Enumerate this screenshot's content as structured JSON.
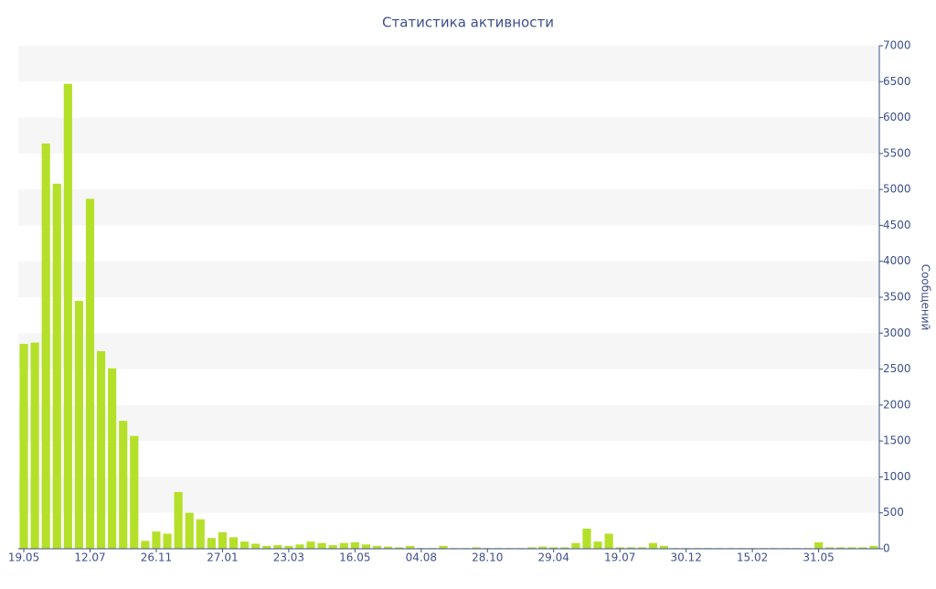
{
  "chart_data": {
    "type": "bar",
    "title": "Статистика активности",
    "y_axis_label": "Сообщений",
    "categories": [
      "19.05",
      null,
      null,
      null,
      null,
      null,
      "12.07",
      null,
      null,
      null,
      null,
      null,
      "26.11",
      null,
      null,
      null,
      null,
      null,
      "27.01",
      null,
      null,
      null,
      null,
      null,
      "23.03",
      null,
      null,
      null,
      null,
      null,
      "16.05",
      null,
      null,
      null,
      null,
      null,
      "04.08",
      null,
      null,
      null,
      null,
      null,
      "28.10",
      null,
      null,
      null,
      null,
      null,
      "29.04",
      null,
      null,
      null,
      null,
      null,
      "19.07",
      null,
      null,
      null,
      null,
      null,
      "30.12",
      null,
      null,
      null,
      null,
      null,
      "15.02",
      null,
      null,
      null,
      null,
      null,
      "31.05",
      null,
      null,
      null,
      null,
      null
    ],
    "values": [
      2850,
      2870,
      5640,
      5080,
      6470,
      3450,
      4870,
      2750,
      2510,
      1780,
      1570,
      110,
      240,
      210,
      790,
      500,
      410,
      150,
      230,
      160,
      100,
      70,
      40,
      50,
      40,
      60,
      100,
      80,
      50,
      80,
      90,
      60,
      40,
      30,
      20,
      40,
      10,
      10,
      40,
      10,
      10,
      20,
      10,
      10,
      10,
      10,
      20,
      30,
      20,
      20,
      80,
      280,
      100,
      210,
      20,
      20,
      20,
      80,
      40,
      10,
      10,
      10,
      10,
      10,
      10,
      10,
      10,
      10,
      10,
      10,
      10,
      10,
      90,
      20,
      20,
      20,
      20,
      40
    ],
    "color": "#b5e02a",
    "ylim": [
      0,
      7000
    ],
    "yticks": [
      0,
      500,
      1000,
      1500,
      2000,
      2500,
      3000,
      3500,
      4000,
      4500,
      5000,
      5500,
      6000,
      6500,
      7000
    ],
    "grid": true
  }
}
